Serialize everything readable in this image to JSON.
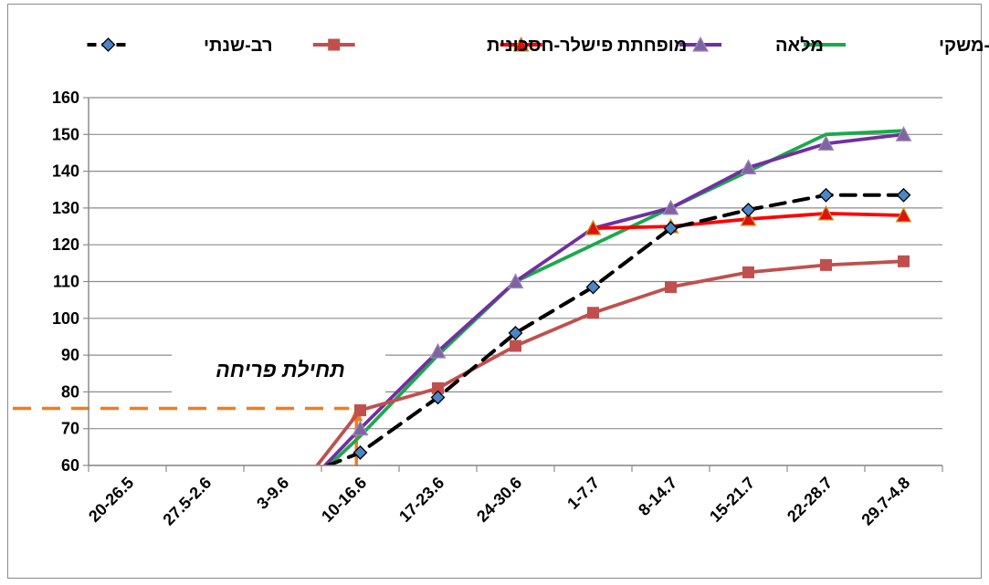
{
  "chart_data": {
    "type": "line",
    "categories": [
      "20-26.5",
      "27.5-2.6",
      "3-9.6",
      "10-16.6",
      "17-23.6",
      "24-30.6",
      "1-7.7",
      "8-14.7",
      "15-21.7",
      "22-28.7",
      "29.7-4.8"
    ],
    "ylim": [
      60,
      160
    ],
    "yticks": [
      60,
      70,
      80,
      90,
      100,
      110,
      120,
      130,
      140,
      150,
      160
    ],
    "grid": true,
    "legend_position": "top",
    "annotation": {
      "text": "תחילת פריחה",
      "level": 75.5,
      "at_category_offset": 3.45,
      "color": "#f07c1e"
    },
    "series": [
      {
        "name": "איתן-משקי",
        "color": "#1aaa4a",
        "marker": "none",
        "dash": false,
        "values": [
          null,
          null,
          48,
          68,
          90,
          110,
          120,
          130,
          140,
          150,
          151
        ]
      },
      {
        "name": "מלאה",
        "color": "#7030a0",
        "marker": "triangle",
        "marker_fill": "#8064a2",
        "dash": false,
        "values": [
          null,
          null,
          48,
          70,
          91,
          110,
          124.5,
          130,
          141,
          147.5,
          150
        ]
      },
      {
        "name": "מופחתת",
        "color": "#ff0000",
        "marker": "triangle",
        "marker_fill": "#e01010",
        "dash": false,
        "values": [
          null,
          null,
          null,
          null,
          null,
          null,
          124.5,
          125,
          127,
          128.5,
          128
        ]
      },
      {
        "name": "פישלר-חסכונית",
        "color": "#c0504d",
        "marker": "square",
        "marker_fill": "#c0504d",
        "dash": false,
        "values": [
          null,
          null,
          48,
          75,
          81,
          92.5,
          101.5,
          108.5,
          112.5,
          114.5,
          115.5
        ]
      },
      {
        "name": "רב-שנתי",
        "color": "#000000",
        "marker": "diamond",
        "marker_fill": "#4a86c8",
        "dash": true,
        "values": [
          null,
          null,
          55,
          63.5,
          78.5,
          96,
          108.5,
          124.5,
          129.5,
          133.5,
          133.5
        ]
      }
    ]
  }
}
